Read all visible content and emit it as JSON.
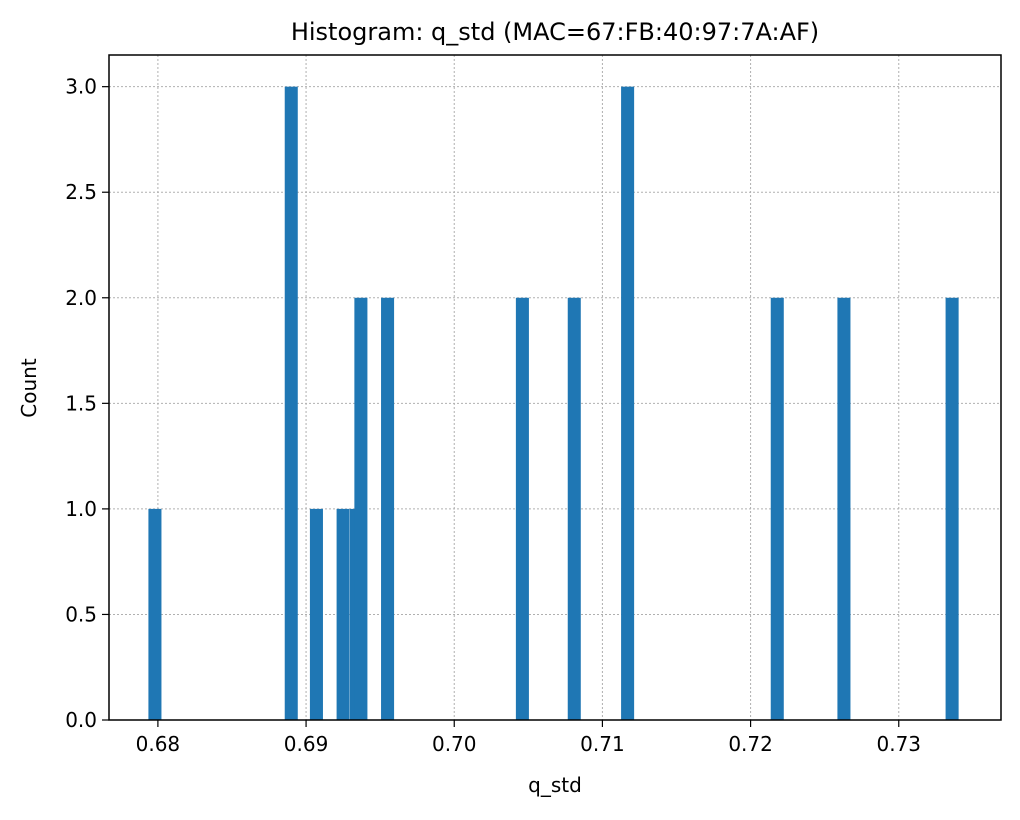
{
  "chart_data": {
    "type": "bar",
    "title": "Histogram: q_std (MAC=67:FB:40:97:7A:AF)",
    "xlabel": "q_std",
    "ylabel": "Count",
    "xlim": [
      0.6767,
      0.7369
    ],
    "ylim": [
      0,
      3.15
    ],
    "bin_width": 0.00088,
    "color": "#1f77b4",
    "grid": true,
    "xticks": [
      0.68,
      0.69,
      0.7,
      0.71,
      0.72,
      0.73
    ],
    "xtick_labels": [
      "0.68",
      "0.69",
      "0.70",
      "0.71",
      "0.72",
      "0.73"
    ],
    "yticks": [
      0.0,
      0.5,
      1.0,
      1.5,
      2.0,
      2.5,
      3.0
    ],
    "ytick_labels": [
      "0.0",
      "0.5",
      "1.0",
      "1.5",
      "2.0",
      "2.5",
      "3.0"
    ],
    "bins": [
      {
        "x": 0.6798,
        "count": 1
      },
      {
        "x": 0.689,
        "count": 3
      },
      {
        "x": 0.6907,
        "count": 1
      },
      {
        "x": 0.6925,
        "count": 1
      },
      {
        "x": 0.6934,
        "count": 1
      },
      {
        "x": 0.6937,
        "count": 2
      },
      {
        "x": 0.6955,
        "count": 2
      },
      {
        "x": 0.7046,
        "count": 2
      },
      {
        "x": 0.7081,
        "count": 2
      },
      {
        "x": 0.7117,
        "count": 3
      },
      {
        "x": 0.7218,
        "count": 2
      },
      {
        "x": 0.7263,
        "count": 2
      },
      {
        "x": 0.7336,
        "count": 2
      }
    ]
  }
}
